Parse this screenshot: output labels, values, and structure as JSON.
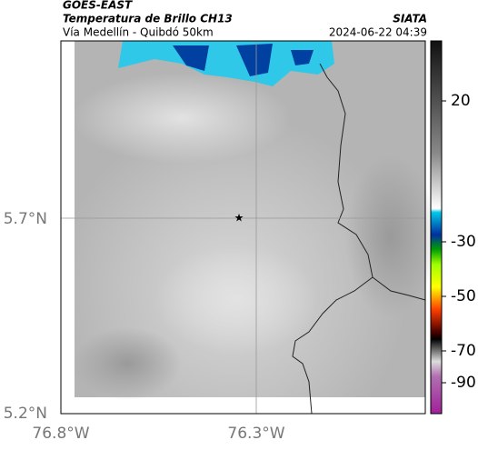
{
  "header": {
    "title": "GOES-EAST",
    "subtitle": "Temperatura de Brillo CH13",
    "route": "Vía Medellín - Quibdó 50km",
    "source": "SIATA",
    "datetime": "2024-06-22 04:39"
  },
  "axes": {
    "lat_labels": [
      "5.7°N",
      "5.2°N"
    ],
    "lon_labels": [
      "76.8°W",
      "76.3°W"
    ]
  },
  "colorbar": {
    "ticks": [
      20,
      -30,
      -50,
      -70,
      -90
    ]
  }
}
